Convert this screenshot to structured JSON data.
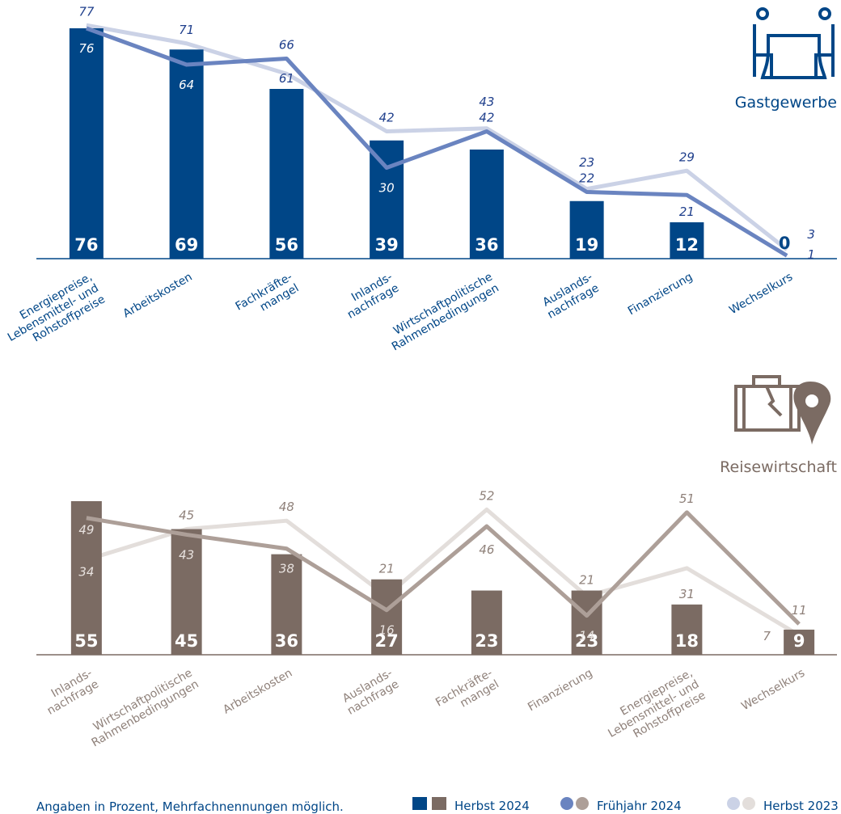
{
  "colors": {
    "gast_bar": "#004687",
    "gast_fj": "#6a84c0",
    "gast_hb23": "#cbd2e6",
    "gast_text_light": "#1f3f8c",
    "reise_bar": "#7b6b63",
    "reise_fj": "#ad9f98",
    "reise_hb23": "#e3dedb",
    "axis": "#004687",
    "reise_axis": "#7b6b63"
  },
  "chart_data": [
    {
      "type": "bar",
      "title": "Gastgewerbe",
      "title_icon": "restaurant-table-icon",
      "categories": [
        "Energiepreise,\nLebensmittel- und\nRohstoffpreise",
        "Arbeitskosten",
        "Fachkräfte-\nmangel",
        "Inlands-\nnachfrage",
        "Wirtschaftpolitische\nRahmenbedingungen",
        "Auslands-\nnachfrage",
        "Finanzierung",
        "Wechselkurs"
      ],
      "ylim": [
        0,
        80
      ],
      "series": [
        {
          "name": "Herbst 2024",
          "kind": "bar",
          "values": [
            76,
            69,
            56,
            39,
            36,
            19,
            12,
            0
          ]
        },
        {
          "name": "Frühjahr 2024",
          "kind": "line",
          "values": [
            76,
            64,
            66,
            30,
            42,
            22,
            21,
            1
          ]
        },
        {
          "name": "Herbst 2023",
          "kind": "line",
          "values": [
            77,
            71,
            61,
            42,
            43,
            23,
            29,
            3
          ]
        }
      ]
    },
    {
      "type": "bar",
      "title": "Reisewirtschaft",
      "title_icon": "suitcase-location-icon",
      "categories": [
        "Inlands-\nnachfrage",
        "Wirtschaftpolitische\nRahmenbedingungen",
        "Arbeitskosten",
        "Auslands-\nnachfrage",
        "Fachkräfte-\nmangel",
        "Finanzierung",
        "Energiepreise,\nLebensmittel- und\nRohstoffpreise",
        "Wechselkurs"
      ],
      "ylim": [
        0,
        55
      ],
      "series": [
        {
          "name": "Herbst 2024",
          "kind": "bar",
          "values": [
            55,
            45,
            36,
            27,
            23,
            23,
            18,
            9
          ]
        },
        {
          "name": "Frühjahr 2024",
          "kind": "line",
          "values": [
            49,
            43,
            38,
            16,
            46,
            14,
            51,
            11
          ]
        },
        {
          "name": "Herbst 2023",
          "kind": "line",
          "values": [
            34,
            45,
            48,
            21,
            52,
            21,
            31,
            7
          ]
        }
      ]
    }
  ],
  "footer": {
    "note": "Angaben in Prozent, Mehrfachnennungen möglich.",
    "legend": [
      "Herbst 2024",
      "Frühjahr 2024",
      "Herbst 2023"
    ]
  }
}
